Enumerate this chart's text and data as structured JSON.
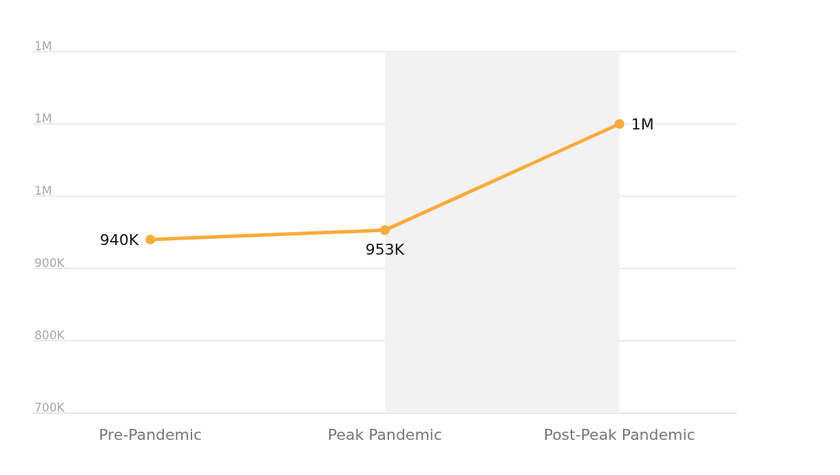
{
  "chart_data": {
    "type": "line",
    "categories": [
      "Pre-Pandemic",
      "Peak Pandemic",
      "Post-Peak Pandemic"
    ],
    "series": [
      {
        "color": "#fbab3a",
        "values": [
          940000,
          953000,
          1100000
        ],
        "value_labels": [
          "940K",
          "953K",
          "1M"
        ]
      }
    ],
    "ylim": [
      700000,
      1200000
    ],
    "yticks": [
      {
        "value": 700000,
        "label": "700K"
      },
      {
        "value": 800000,
        "label": "800K"
      },
      {
        "value": 900000,
        "label": "900K"
      },
      {
        "value": 1000000,
        "label": "1M"
      },
      {
        "value": 1100000,
        "label": "1M"
      },
      {
        "value": 1200000,
        "label": "1M"
      }
    ],
    "bands": [
      {
        "axis": "x",
        "from": "Peak Pandemic",
        "to": "Post-Peak Pandemic",
        "color": "#f2f2f2"
      }
    ],
    "grid": "y",
    "marker": "circle",
    "line_style": "solid"
  }
}
